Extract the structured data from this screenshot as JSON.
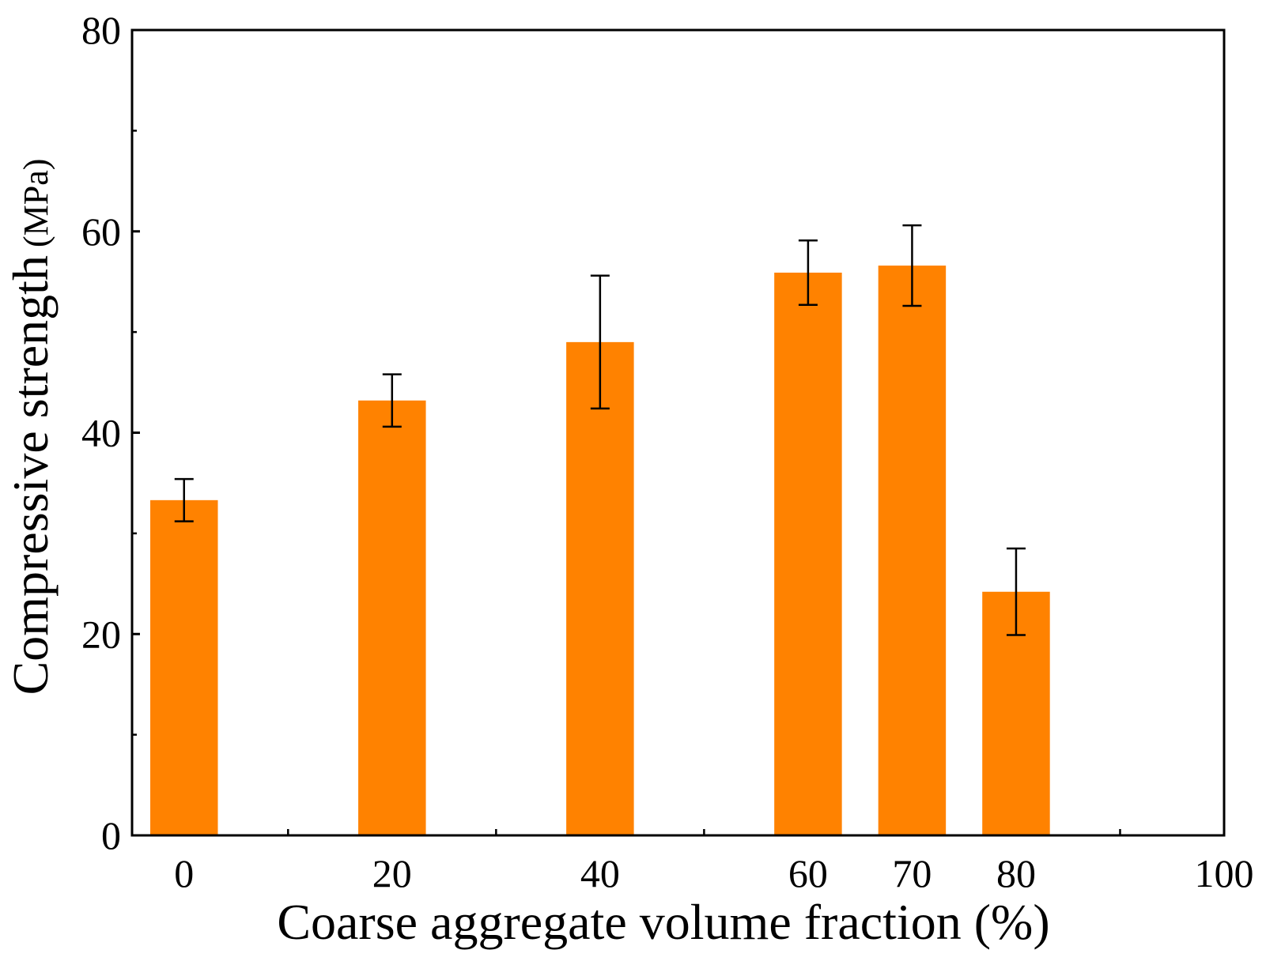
{
  "chart_data": {
    "type": "bar",
    "title": "",
    "xlabel": "Coarse aggregate volume fraction (%)",
    "ylabel_main": "Compressive strength",
    "ylabel_unit": "(MPa)",
    "x": [
      0,
      20,
      40,
      60,
      70,
      80
    ],
    "values": [
      33.3,
      43.2,
      49.0,
      55.9,
      56.6,
      24.2
    ],
    "errors": [
      2.1,
      2.6,
      6.6,
      3.2,
      4.0,
      4.3
    ],
    "xlim": [
      -5,
      100
    ],
    "ylim": [
      0,
      80
    ],
    "x_ticks": [
      {
        "value": 0,
        "label": "0"
      },
      {
        "value": 20,
        "label": "20"
      },
      {
        "value": 40,
        "label": "40"
      },
      {
        "value": 60,
        "label": "60"
      },
      {
        "value": 70,
        "label": "70"
      },
      {
        "value": 80,
        "label": "80"
      },
      {
        "value": 100,
        "label": "100"
      }
    ],
    "x_minor_ticks": [
      10,
      30,
      50,
      90
    ],
    "y_ticks": [
      {
        "value": 0,
        "label": "0"
      },
      {
        "value": 20,
        "label": "20"
      },
      {
        "value": 40,
        "label": "40"
      },
      {
        "value": 60,
        "label": "60"
      },
      {
        "value": 80,
        "label": "80"
      }
    ],
    "y_minor_ticks": [
      10,
      30,
      50,
      70
    ],
    "bar_width": 6.5,
    "grid": false,
    "legend": "none",
    "colors": {
      "bar": "#ff8200",
      "axis": "#000000",
      "error_bar": "#000000"
    }
  }
}
